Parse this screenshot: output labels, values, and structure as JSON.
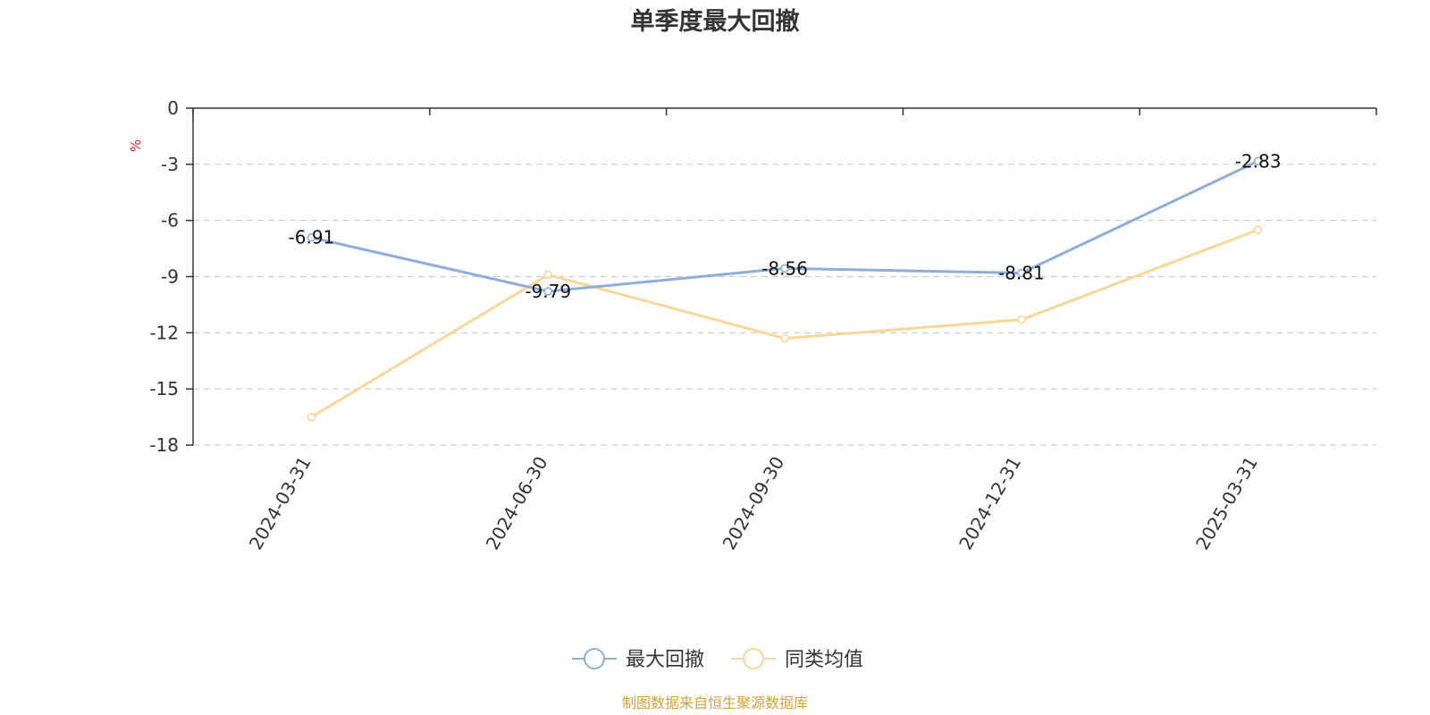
{
  "chart_data": {
    "type": "line",
    "title": "单季度最大回撤",
    "ylabel": "%",
    "categories": [
      "2024-03-31",
      "2024-06-30",
      "2024-09-30",
      "2024-12-31",
      "2025-03-31"
    ],
    "series": [
      {
        "name": "最大回撤",
        "values": [
          -6.91,
          -9.79,
          -8.56,
          -8.81,
          -2.83
        ],
        "color": "#8eaed8",
        "data_labels": [
          "-6.91",
          "-9.79",
          "-8.56",
          "-8.81",
          "-2.83"
        ]
      },
      {
        "name": "同类均值",
        "values": [
          -16.5,
          -8.9,
          -12.3,
          -11.3,
          -6.5
        ],
        "color": "#f7d898"
      }
    ],
    "ylim": [
      -18,
      0
    ],
    "yticks": [
      "0",
      "-3",
      "-6",
      "-9",
      "-12",
      "-15",
      "-18"
    ],
    "grid": true,
    "legend_position": "bottom-center",
    "source_note": "制图数据来自恒生聚源数据库",
    "colors": {
      "axis": "#333333",
      "grid": "#cccccc",
      "unit": "#e02020",
      "source": "#d4a13a"
    }
  }
}
